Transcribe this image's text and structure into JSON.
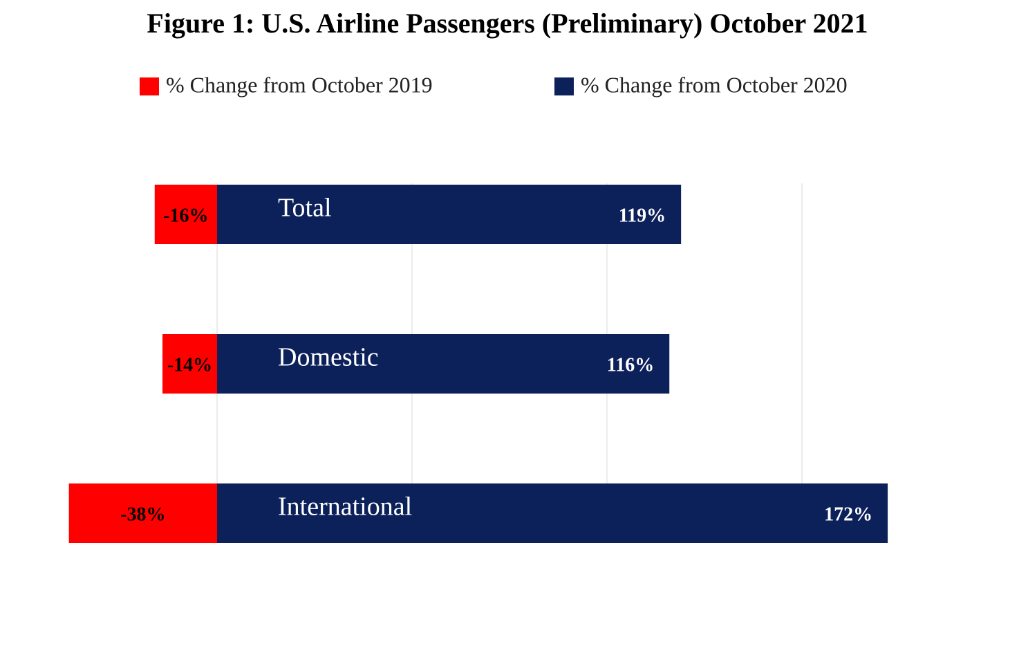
{
  "chart_data": {
    "type": "diverging-bar",
    "title": "Figure 1: U.S. Airline Passengers (Preliminary) October 2021",
    "categories": [
      "Total",
      "Domestic",
      "International"
    ],
    "series": [
      {
        "name": "% Change from October 2019",
        "color": "#ff0000",
        "values": [
          -16,
          -14,
          -38
        ],
        "value_labels": [
          "-16%",
          "-14%",
          "-38%"
        ]
      },
      {
        "name": "% Change from October 2020",
        "color": "#0c205a",
        "values": [
          119,
          116,
          172
        ],
        "value_labels": [
          "119%",
          "116%",
          "172%"
        ]
      }
    ],
    "xlim": [
      -50,
      200
    ],
    "xticks": [
      0,
      50,
      100,
      150
    ],
    "grid": true
  }
}
